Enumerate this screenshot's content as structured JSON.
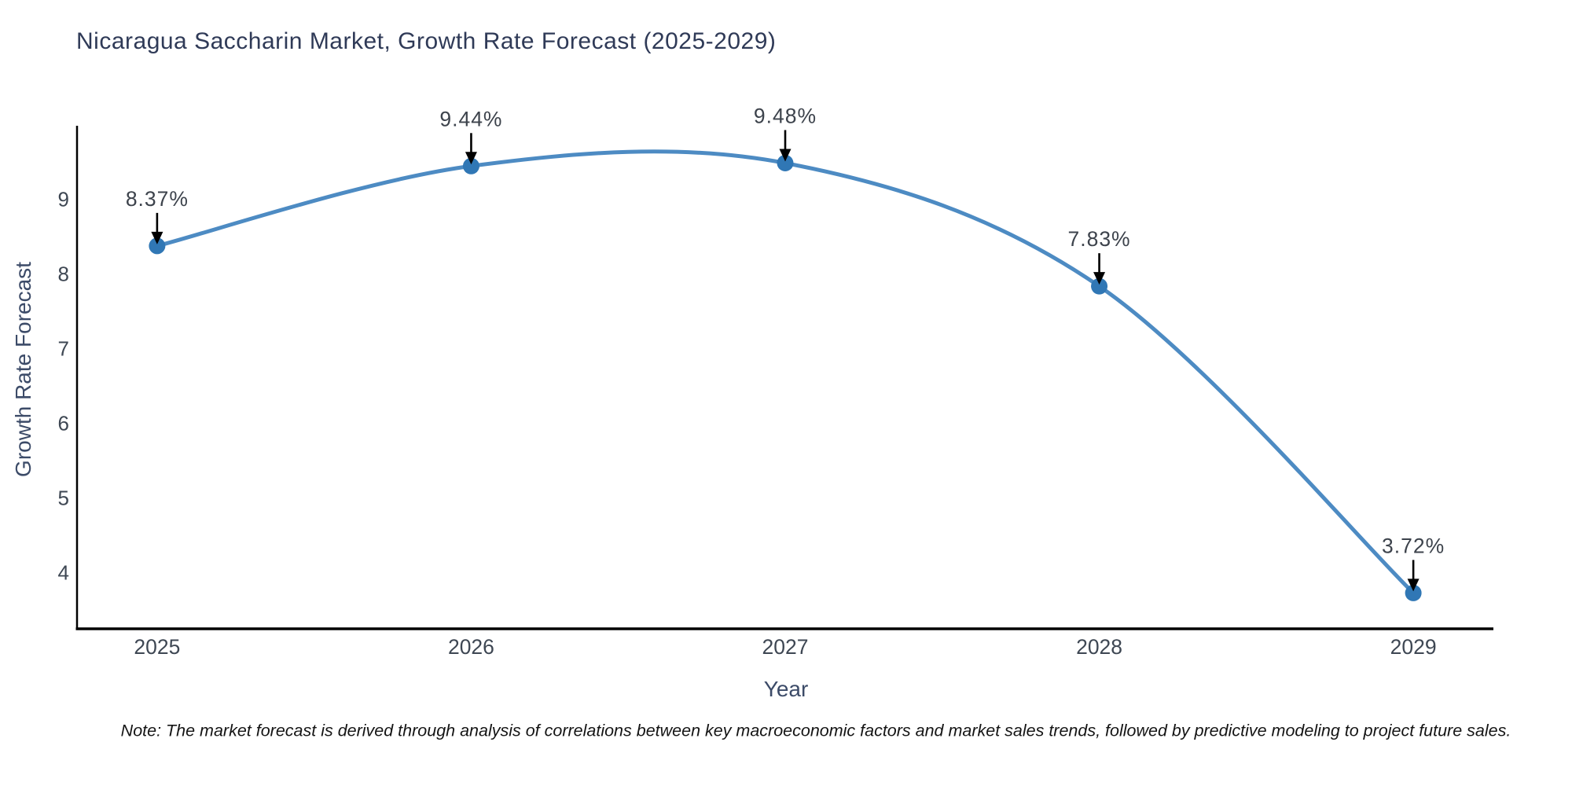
{
  "page": {
    "note": "Note: The market forecast is derived through analysis of correlations between key macroeconomic factors and market sales trends, followed by predictive modeling to project future sales."
  },
  "chart_data": {
    "type": "line",
    "title": "Nicaragua Saccharin Market, Growth Rate Forecast (2025-2029)",
    "xlabel": "Year",
    "ylabel": "Growth Rate Forecast",
    "x": [
      2025,
      2026,
      2027,
      2028,
      2029
    ],
    "values": [
      8.37,
      9.44,
      9.48,
      7.83,
      3.72
    ],
    "point_labels": [
      "8.37%",
      "9.44%",
      "9.48%",
      "7.83%",
      "3.72%"
    ],
    "xticks": [
      "2025",
      "2026",
      "2027",
      "2028",
      "2029"
    ],
    "yticks": [
      4,
      5,
      6,
      7,
      8,
      9
    ],
    "xlim": [
      2024.745,
      2029.255
    ],
    "ylim": [
      3.24,
      9.98
    ],
    "grid": false,
    "legend": "none",
    "smooth_curve": true,
    "colors": {
      "line": "#4d8bc3",
      "marker": "#3077b5",
      "axis": "#000000",
      "tick_label": "#3e4753",
      "annotation_text": "#3d434c",
      "annotation_arrow": "#000000",
      "axis_label": "#3c4b68",
      "title": "#2f3a57"
    }
  }
}
